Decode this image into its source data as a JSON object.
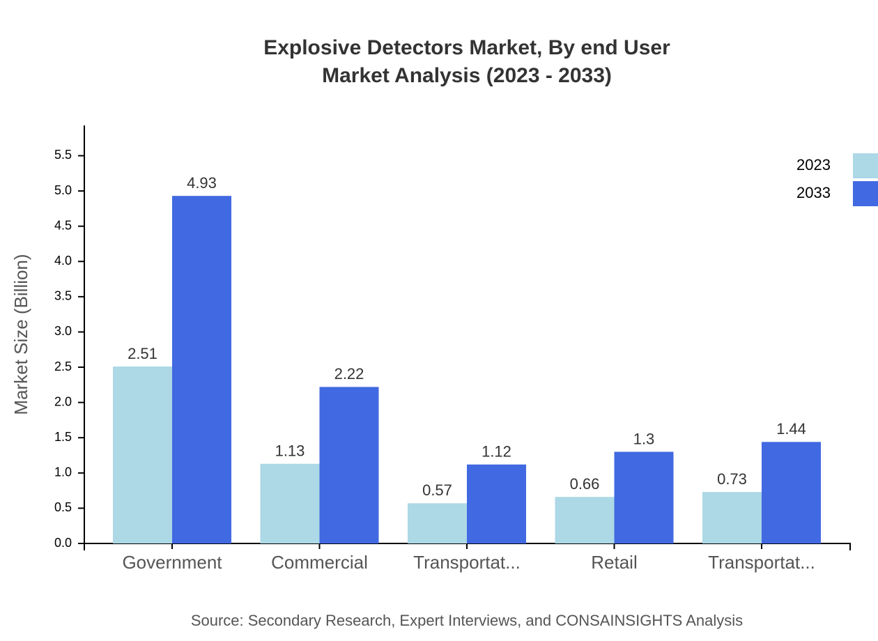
{
  "chart_data": {
    "type": "bar",
    "title": "Explosive Detectors Market, By end User",
    "subtitle": "Market Analysis (2023 - 2033)",
    "y_label": "Market Size (Billion)",
    "source": "Source: Secondary Research, Expert Interviews, and CONSAINSIGHTS Analysis",
    "categories": [
      "Government",
      "Commercial",
      "Transportat...",
      "Retail",
      "Transportat..."
    ],
    "series": [
      {
        "name": "2023",
        "color": "#add8e6",
        "values": [
          2.51,
          1.13,
          0.57,
          0.66,
          0.73
        ]
      },
      {
        "name": "2033",
        "color": "#4169e1",
        "values": [
          4.93,
          2.22,
          1.12,
          1.3,
          1.44
        ]
      }
    ],
    "ylim": [
      0,
      5.92
    ],
    "yticks": [
      {
        "value": 0,
        "label": "0.0"
      },
      0.5,
      {
        "value": 1,
        "label": "1.0"
      },
      1.5,
      {
        "value": 2,
        "label": "2.0"
      },
      2.5,
      {
        "value": 3,
        "label": "3.0"
      },
      3.5,
      {
        "value": 4,
        "label": "4.0"
      },
      4.5,
      {
        "value": 5,
        "label": "5.0"
      },
      5.5
    ],
    "grid": false,
    "legend": "top-right"
  }
}
